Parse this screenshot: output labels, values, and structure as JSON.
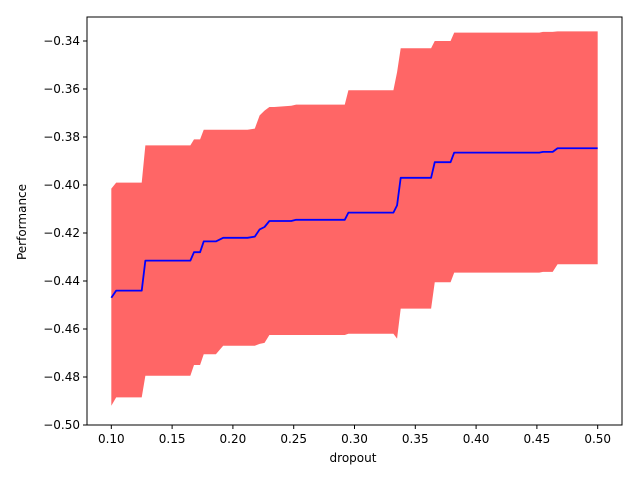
{
  "chart_data": {
    "type": "line",
    "title": "",
    "xlabel": "dropout",
    "ylabel": "Performance",
    "xlim": [
      0.08,
      0.52
    ],
    "ylim": [
      -0.5,
      -0.33
    ],
    "xticks": [
      0.1,
      0.15,
      0.2,
      0.25,
      0.3,
      0.35,
      0.4,
      0.45,
      0.5
    ],
    "xtick_labels": [
      "0.10",
      "0.15",
      "0.20",
      "0.25",
      "0.30",
      "0.35",
      "0.40",
      "0.45",
      "0.50"
    ],
    "yticks": [
      -0.5,
      -0.48,
      -0.46,
      -0.44,
      -0.42,
      -0.4,
      -0.38,
      -0.36,
      -0.34
    ],
    "ytick_labels": [
      "−0.50",
      "−0.48",
      "−0.46",
      "−0.44",
      "−0.42",
      "−0.40",
      "−0.38",
      "−0.36",
      "−0.34"
    ],
    "grid": false,
    "line_color": "#0000ff",
    "band_color": "#ff6666",
    "series": [
      {
        "x": [
          0.1,
          0.104,
          0.125,
          0.128,
          0.165,
          0.168,
          0.173,
          0.176,
          0.186,
          0.192,
          0.212,
          0.218,
          0.222,
          0.226,
          0.23,
          0.234,
          0.248,
          0.252,
          0.292,
          0.295,
          0.332,
          0.335,
          0.338,
          0.363,
          0.366,
          0.379,
          0.382,
          0.452,
          0.455,
          0.463,
          0.467,
          0.5
        ],
        "y": [
          -0.447,
          -0.444,
          -0.444,
          -0.4315,
          -0.4315,
          -0.428,
          -0.428,
          -0.4235,
          -0.4235,
          -0.422,
          -0.422,
          -0.4215,
          -0.4185,
          -0.4175,
          -0.415,
          -0.415,
          -0.415,
          -0.4145,
          -0.4145,
          -0.4115,
          -0.4115,
          -0.4085,
          -0.397,
          -0.397,
          -0.3905,
          -0.3905,
          -0.3865,
          -0.3865,
          -0.3862,
          -0.3862,
          -0.3847,
          -0.3847
        ],
        "lower": [
          -0.492,
          -0.4885,
          -0.4885,
          -0.4795,
          -0.4795,
          -0.475,
          -0.475,
          -0.4705,
          -0.4705,
          -0.467,
          -0.467,
          -0.467,
          -0.4662,
          -0.4658,
          -0.4625,
          -0.4625,
          -0.4625,
          -0.4625,
          -0.4625,
          -0.462,
          -0.462,
          -0.464,
          -0.4515,
          -0.4515,
          -0.4405,
          -0.4405,
          -0.4365,
          -0.4365,
          -0.4362,
          -0.4362,
          -0.433,
          -0.433
        ],
        "upper": [
          -0.4015,
          -0.399,
          -0.399,
          -0.3835,
          -0.3835,
          -0.381,
          -0.381,
          -0.377,
          -0.377,
          -0.377,
          -0.377,
          -0.3765,
          -0.371,
          -0.369,
          -0.3675,
          -0.3675,
          -0.367,
          -0.3665,
          -0.3665,
          -0.3605,
          -0.3605,
          -0.353,
          -0.343,
          -0.343,
          -0.34,
          -0.34,
          -0.3365,
          -0.3365,
          -0.3362,
          -0.3362,
          -0.336,
          -0.336
        ]
      }
    ]
  }
}
